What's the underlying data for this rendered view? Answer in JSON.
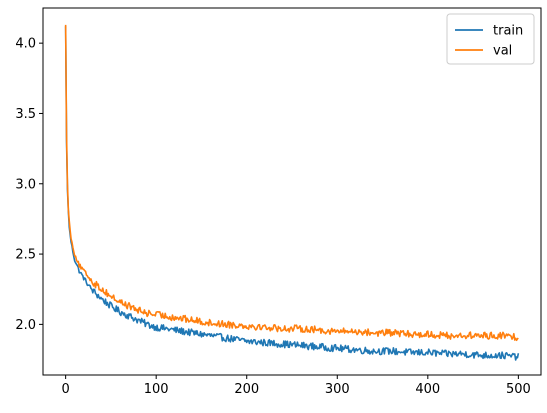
{
  "chart_data": {
    "type": "line",
    "title": "",
    "xlabel": "",
    "ylabel": "",
    "xlim": [
      -25,
      525
    ],
    "ylim": [
      1.64,
      4.25
    ],
    "xticks": [
      0,
      100,
      200,
      300,
      400,
      500
    ],
    "yticks": [
      2.0,
      2.5,
      3.0,
      3.5,
      4.0
    ],
    "xtick_labels": [
      "0",
      "100",
      "200",
      "300",
      "400",
      "500"
    ],
    "ytick_labels": [
      "2.0",
      "2.5",
      "3.0",
      "3.5",
      "4.0"
    ],
    "grid": false,
    "legend": {
      "position": "top-right",
      "entries": [
        "train",
        "val"
      ]
    },
    "series": [
      {
        "name": "train",
        "color": "#1f77b4",
        "points": [
          [
            0,
            4.12
          ],
          [
            1,
            3.3
          ],
          [
            2,
            2.96
          ],
          [
            3,
            2.8
          ],
          [
            4,
            2.7
          ],
          [
            5,
            2.63
          ],
          [
            7,
            2.55
          ],
          [
            10,
            2.46
          ],
          [
            15,
            2.38
          ],
          [
            20,
            2.33
          ],
          [
            25,
            2.28
          ],
          [
            30,
            2.24
          ],
          [
            40,
            2.18
          ],
          [
            50,
            2.13
          ],
          [
            60,
            2.09
          ],
          [
            70,
            2.06
          ],
          [
            80,
            2.03
          ],
          [
            90,
            2.0
          ],
          [
            100,
            1.98
          ],
          [
            120,
            1.96
          ],
          [
            140,
            1.94
          ],
          [
            160,
            1.92
          ],
          [
            180,
            1.9
          ],
          [
            200,
            1.88
          ],
          [
            220,
            1.87
          ],
          [
            240,
            1.86
          ],
          [
            260,
            1.85
          ],
          [
            280,
            1.84
          ],
          [
            300,
            1.83
          ],
          [
            320,
            1.82
          ],
          [
            340,
            1.81
          ],
          [
            360,
            1.81
          ],
          [
            380,
            1.8
          ],
          [
            400,
            1.8
          ],
          [
            420,
            1.79
          ],
          [
            440,
            1.79
          ],
          [
            460,
            1.78
          ],
          [
            480,
            1.78
          ],
          [
            500,
            1.77
          ]
        ],
        "noise": 0.025
      },
      {
        "name": "val",
        "color": "#ff7f0e",
        "points": [
          [
            0,
            4.13
          ],
          [
            1,
            3.35
          ],
          [
            2,
            3.0
          ],
          [
            3,
            2.83
          ],
          [
            4,
            2.73
          ],
          [
            5,
            2.66
          ],
          [
            7,
            2.58
          ],
          [
            10,
            2.5
          ],
          [
            15,
            2.42
          ],
          [
            20,
            2.38
          ],
          [
            25,
            2.34
          ],
          [
            30,
            2.3
          ],
          [
            40,
            2.25
          ],
          [
            50,
            2.2
          ],
          [
            60,
            2.16
          ],
          [
            70,
            2.13
          ],
          [
            80,
            2.1
          ],
          [
            90,
            2.08
          ],
          [
            100,
            2.07
          ],
          [
            120,
            2.05
          ],
          [
            140,
            2.03
          ],
          [
            160,
            2.01
          ],
          [
            180,
            2.0
          ],
          [
            200,
            1.99
          ],
          [
            220,
            1.98
          ],
          [
            240,
            1.97
          ],
          [
            260,
            1.97
          ],
          [
            280,
            1.96
          ],
          [
            300,
            1.95
          ],
          [
            320,
            1.95
          ],
          [
            340,
            1.94
          ],
          [
            360,
            1.94
          ],
          [
            380,
            1.93
          ],
          [
            400,
            1.93
          ],
          [
            420,
            1.92
          ],
          [
            440,
            1.92
          ],
          [
            460,
            1.92
          ],
          [
            480,
            1.92
          ],
          [
            500,
            1.91
          ]
        ],
        "noise": 0.025
      }
    ]
  }
}
